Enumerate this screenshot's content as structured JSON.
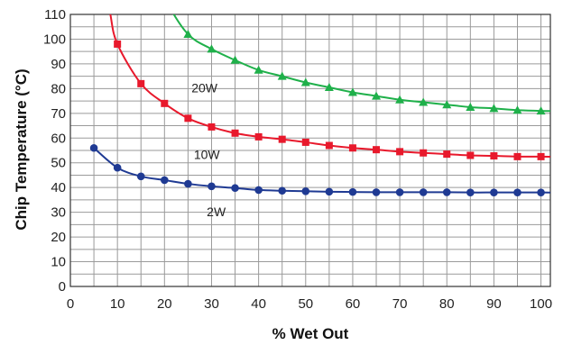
{
  "chart_data": {
    "type": "line",
    "title": "",
    "xlabel": "% Wet Out",
    "ylabel": "Chip Temperature (°C)",
    "xlim": [
      0,
      102
    ],
    "ylim": [
      0,
      110
    ],
    "x_ticks": [
      0,
      10,
      20,
      30,
      40,
      50,
      60,
      70,
      80,
      90,
      100
    ],
    "y_ticks": [
      0,
      10,
      20,
      30,
      40,
      50,
      60,
      70,
      80,
      90,
      100,
      110
    ],
    "grid": true,
    "legend": "none",
    "series": [
      {
        "name": "2W",
        "color": "#1f3a93",
        "marker": "circle",
        "x": [
          5,
          10,
          15,
          20,
          25,
          30,
          35,
          40,
          45,
          50,
          55,
          60,
          65,
          70,
          75,
          80,
          85,
          90,
          95,
          100
        ],
        "y": [
          56,
          48,
          44.5,
          43,
          41.5,
          40.5,
          39.8,
          39,
          38.7,
          38.5,
          38.3,
          38.2,
          38.1,
          38.1,
          38.1,
          38.1,
          38,
          38,
          38,
          38
        ]
      },
      {
        "name": "10W",
        "color": "#e8192c",
        "marker": "square",
        "x": [
          10,
          15,
          20,
          25,
          30,
          35,
          40,
          45,
          50,
          55,
          60,
          65,
          70,
          75,
          80,
          85,
          90,
          95,
          100
        ],
        "y": [
          98,
          82,
          74,
          68,
          64.5,
          62,
          60.5,
          59.5,
          58.3,
          57,
          56,
          55.3,
          54.5,
          54,
          53.5,
          53,
          52.8,
          52.5,
          52.5
        ]
      },
      {
        "name": "20W",
        "color": "#1fb04a",
        "marker": "triangle",
        "x": [
          25,
          30,
          35,
          40,
          45,
          50,
          55,
          60,
          65,
          70,
          75,
          80,
          85,
          90,
          95,
          100
        ],
        "y": [
          102,
          96,
          91.5,
          87.5,
          85,
          82.5,
          80.5,
          78.5,
          77,
          75.5,
          74.5,
          73.5,
          72.5,
          72,
          71.3,
          71
        ]
      }
    ]
  }
}
